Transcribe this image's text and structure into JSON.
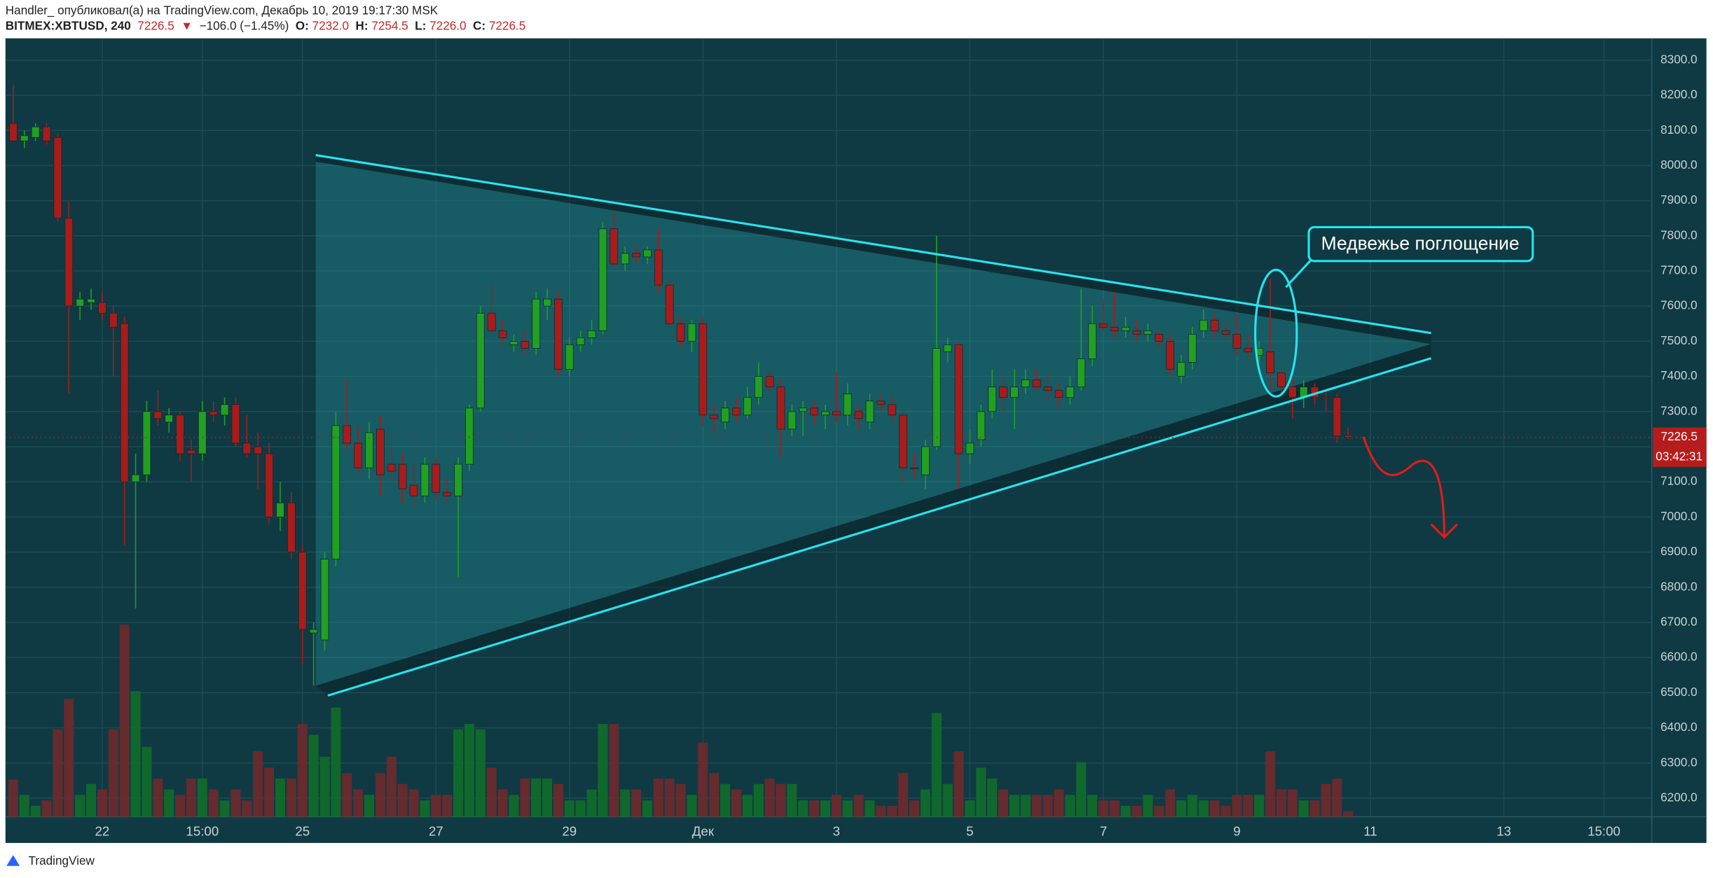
{
  "header": {
    "line1": "Handler_ опубликовал(а) на TradingView.com, Декабрь 10, 2019 19:17:30 MSK",
    "symbol": "BITMEX:XBTUSD, 240",
    "last": "7226.5",
    "arrow": "▼",
    "change": "−106.0 (−1.45%)",
    "o_label": "O:",
    "o": "7232.0",
    "h_label": "H:",
    "h": "7254.5",
    "l_label": "L:",
    "l": "7226.0",
    "c_label": "C:",
    "c": "7226.5"
  },
  "chart_data": {
    "type": "candlestick",
    "up_color": "#22a022",
    "down_color": "#a81c1c",
    "grid": true,
    "xlim": [
      -0.7,
      147.3
    ],
    "xticks": [
      {
        "value": 8,
        "label": "22"
      },
      {
        "value": 17,
        "label": "15:00"
      },
      {
        "value": 26,
        "label": "25"
      },
      {
        "value": 38,
        "label": "27"
      },
      {
        "value": 50,
        "label": "29"
      },
      {
        "value": 62,
        "label": "Дек"
      },
      {
        "value": 74,
        "label": "3"
      },
      {
        "value": 86,
        "label": "5"
      },
      {
        "value": 98,
        "label": "7"
      },
      {
        "value": 110,
        "label": "9"
      },
      {
        "value": 122,
        "label": "11"
      },
      {
        "value": 134,
        "label": "13"
      },
      {
        "value": 143,
        "label": "15:00"
      }
    ],
    "ylim": [
      6147,
      8362
    ],
    "yticks": [
      {
        "value": 6200,
        "label": "6200.0"
      },
      {
        "value": 6300,
        "label": "6300.0"
      },
      {
        "value": 6400,
        "label": "6400.0"
      },
      {
        "value": 6500,
        "label": "6500.0"
      },
      {
        "value": 6600,
        "label": "6600.0"
      },
      {
        "value": 6700,
        "label": "6700.0"
      },
      {
        "value": 6800,
        "label": "6800.0"
      },
      {
        "value": 6900,
        "label": "6900.0"
      },
      {
        "value": 7000,
        "label": "7000.0"
      },
      {
        "value": 7100,
        "label": "7100.0"
      },
      {
        "value": 7200,
        "label": "7200.0"
      },
      {
        "value": 7300,
        "label": "7300.0"
      },
      {
        "value": 7400,
        "label": "7400.0"
      },
      {
        "value": 7500,
        "label": "7500.0"
      },
      {
        "value": 7600,
        "label": "7600.0"
      },
      {
        "value": 7700,
        "label": "7700.0"
      },
      {
        "value": 7800,
        "label": "7800.0"
      },
      {
        "value": 7900,
        "label": "7900.0"
      },
      {
        "value": 8000,
        "label": "8000.0"
      },
      {
        "value": 8100,
        "label": "8100.0"
      },
      {
        "value": 8200,
        "label": "8200.0"
      },
      {
        "value": 8300,
        "label": "8300.0"
      }
    ],
    "vlim": [
      0,
      713
    ],
    "candles": [
      [
        8120,
        8230,
        8070,
        8070
      ],
      [
        8070,
        8100,
        8050,
        8085
      ],
      [
        8080,
        8120,
        8070,
        8110
      ],
      [
        8110,
        8120,
        8060,
        8070
      ],
      [
        8080,
        8090,
        7840,
        7850
      ],
      [
        7850,
        7900,
        7350,
        7600
      ],
      [
        7600,
        7640,
        7560,
        7620
      ],
      [
        7610,
        7650,
        7590,
        7620
      ],
      [
        7610,
        7640,
        7560,
        7580
      ],
      [
        7580,
        7600,
        7400,
        7540
      ],
      [
        7550,
        7570,
        6920,
        7100
      ],
      [
        7100,
        7180,
        6740,
        7120
      ],
      [
        7120,
        7330,
        7100,
        7300
      ],
      [
        7300,
        7360,
        7260,
        7280
      ],
      [
        7270,
        7310,
        7240,
        7290
      ],
      [
        7290,
        7300,
        7160,
        7180
      ],
      [
        7190,
        7220,
        7100,
        7180
      ],
      [
        7180,
        7330,
        7160,
        7300
      ],
      [
        7300,
        7330,
        7270,
        7290
      ],
      [
        7290,
        7340,
        7260,
        7320
      ],
      [
        7320,
        7340,
        7200,
        7210
      ],
      [
        7210,
        7290,
        7170,
        7180
      ],
      [
        7200,
        7240,
        7080,
        7180
      ],
      [
        7180,
        7210,
        6980,
        7000
      ],
      [
        7000,
        7100,
        6960,
        7040
      ],
      [
        7040,
        7070,
        6880,
        6900
      ],
      [
        6900,
        6920,
        6580,
        6680
      ],
      [
        6670,
        6700,
        6520,
        6680
      ],
      [
        6650,
        6900,
        6620,
        6880
      ],
      [
        6880,
        7300,
        6860,
        7260
      ],
      [
        7260,
        7390,
        7190,
        7210
      ],
      [
        7210,
        7260,
        7120,
        7140
      ],
      [
        7140,
        7270,
        7110,
        7240
      ],
      [
        7250,
        7290,
        7060,
        7120
      ],
      [
        7150,
        7200,
        7100,
        7130
      ],
      [
        7150,
        7180,
        7040,
        7080
      ],
      [
        7090,
        7150,
        7030,
        7060
      ],
      [
        7060,
        7170,
        7040,
        7150
      ],
      [
        7150,
        7170,
        7050,
        7070
      ],
      [
        7070,
        7110,
        7040,
        7060
      ],
      [
        7060,
        7170,
        6830,
        7150
      ],
      [
        7150,
        7320,
        7130,
        7310
      ],
      [
        7310,
        7600,
        7300,
        7580
      ],
      [
        7580,
        7660,
        7520,
        7530
      ],
      [
        7530,
        7560,
        7490,
        7510
      ],
      [
        7490,
        7520,
        7470,
        7500
      ],
      [
        7500,
        7530,
        7460,
        7480
      ],
      [
        7480,
        7640,
        7460,
        7620
      ],
      [
        7600,
        7650,
        7560,
        7620
      ],
      [
        7620,
        7640,
        7400,
        7420
      ],
      [
        7420,
        7510,
        7400,
        7490
      ],
      [
        7490,
        7530,
        7470,
        7510
      ],
      [
        7510,
        7560,
        7490,
        7530
      ],
      [
        7530,
        7840,
        7520,
        7820
      ],
      [
        7820,
        7870,
        7710,
        7720
      ],
      [
        7720,
        7770,
        7700,
        7750
      ],
      [
        7750,
        7770,
        7720,
        7740
      ],
      [
        7740,
        7770,
        7720,
        7760
      ],
      [
        7760,
        7820,
        7640,
        7660
      ],
      [
        7660,
        7680,
        7540,
        7550
      ],
      [
        7550,
        7570,
        7480,
        7500
      ],
      [
        7500,
        7560,
        7470,
        7550
      ],
      [
        7550,
        7570,
        7260,
        7290
      ],
      [
        7290,
        7320,
        7240,
        7280
      ],
      [
        7270,
        7330,
        7250,
        7310
      ],
      [
        7310,
        7340,
        7270,
        7290
      ],
      [
        7290,
        7370,
        7280,
        7340
      ],
      [
        7340,
        7440,
        7320,
        7400
      ],
      [
        7400,
        7420,
        7350,
        7370
      ],
      [
        7370,
        7390,
        7170,
        7250
      ],
      [
        7250,
        7320,
        7230,
        7300
      ],
      [
        7300,
        7330,
        7230,
        7310
      ],
      [
        7310,
        7330,
        7260,
        7290
      ],
      [
        7290,
        7320,
        7250,
        7300
      ],
      [
        7300,
        7410,
        7270,
        7290
      ],
      [
        7290,
        7380,
        7260,
        7350
      ],
      [
        7300,
        7320,
        7250,
        7280
      ],
      [
        7270,
        7350,
        7250,
        7330
      ],
      [
        7330,
        7350,
        7300,
        7320
      ],
      [
        7320,
        7340,
        7270,
        7290
      ],
      [
        7290,
        7300,
        7100,
        7140
      ],
      [
        7140,
        7180,
        7110,
        7140
      ],
      [
        7120,
        7220,
        7080,
        7200
      ],
      [
        7200,
        7800,
        7190,
        7480
      ],
      [
        7470,
        7510,
        7440,
        7490
      ],
      [
        7490,
        7500,
        7080,
        7180
      ],
      [
        7180,
        7250,
        7150,
        7210
      ],
      [
        7220,
        7320,
        7200,
        7300
      ],
      [
        7300,
        7420,
        7280,
        7370
      ],
      [
        7370,
        7400,
        7300,
        7340
      ],
      [
        7340,
        7420,
        7250,
        7370
      ],
      [
        7370,
        7420,
        7350,
        7390
      ],
      [
        7390,
        7420,
        7360,
        7370
      ],
      [
        7370,
        7410,
        7330,
        7360
      ],
      [
        7360,
        7380,
        7310,
        7340
      ],
      [
        7340,
        7400,
        7320,
        7370
      ],
      [
        7370,
        7650,
        7360,
        7450
      ],
      [
        7450,
        7600,
        7430,
        7550
      ],
      [
        7550,
        7620,
        7530,
        7540
      ],
      [
        7540,
        7640,
        7510,
        7530
      ],
      [
        7530,
        7570,
        7510,
        7540
      ],
      [
        7530,
        7560,
        7500,
        7520
      ],
      [
        7520,
        7550,
        7500,
        7530
      ],
      [
        7520,
        7530,
        7480,
        7500
      ],
      [
        7500,
        7520,
        7400,
        7420
      ],
      [
        7400,
        7460,
        7380,
        7440
      ],
      [
        7440,
        7540,
        7420,
        7520
      ],
      [
        7530,
        7590,
        7510,
        7560
      ],
      [
        7560,
        7580,
        7510,
        7530
      ],
      [
        7530,
        7560,
        7500,
        7520
      ],
      [
        7520,
        7580,
        7460,
        7480
      ],
      [
        7480,
        7520,
        7450,
        7470
      ],
      [
        7460,
        7500,
        7440,
        7480
      ],
      [
        7470,
        7680,
        7360,
        7410
      ],
      [
        7410,
        7430,
        7350,
        7370
      ],
      [
        7370,
        7390,
        7280,
        7340
      ],
      [
        7340,
        7390,
        7310,
        7370
      ],
      [
        7370,
        7380,
        7320,
        7340
      ],
      [
        7340,
        7360,
        7300,
        7340
      ],
      [
        7340,
        7350,
        7210,
        7230
      ],
      [
        7232,
        7254.5,
        7226,
        7226.5
      ]
    ],
    "volume": [
      34,
      20,
      10,
      15,
      80,
      108,
      20,
      30,
      25,
      80,
      176,
      115,
      64,
      35,
      25,
      20,
      35,
      35,
      25,
      15,
      25,
      15,
      60,
      45,
      35,
      35,
      85,
      75,
      55,
      100,
      40,
      25,
      20,
      40,
      55,
      30,
      25,
      15,
      20,
      20,
      80,
      85,
      80,
      45,
      25,
      20,
      35,
      35,
      35,
      30,
      15,
      15,
      25,
      85,
      85,
      25,
      25,
      15,
      35,
      35,
      30,
      20,
      68,
      40,
      30,
      25,
      20,
      30,
      35,
      30,
      30,
      15,
      15,
      15,
      20,
      15,
      20,
      15,
      10,
      10,
      40,
      15,
      25,
      95,
      30,
      60,
      15,
      45,
      35,
      25,
      20,
      20,
      20,
      20,
      25,
      20,
      50,
      20,
      15,
      15,
      10,
      10,
      20,
      10,
      25,
      15,
      20,
      15,
      15,
      10,
      20,
      20,
      20,
      60,
      25,
      25,
      15,
      15,
      30,
      35,
      5
    ],
    "price_label": "7226.5",
    "countdown": "03:42:31",
    "annotation": "Медвежье поглощение"
  },
  "footer": {
    "brand": "TradingView"
  }
}
